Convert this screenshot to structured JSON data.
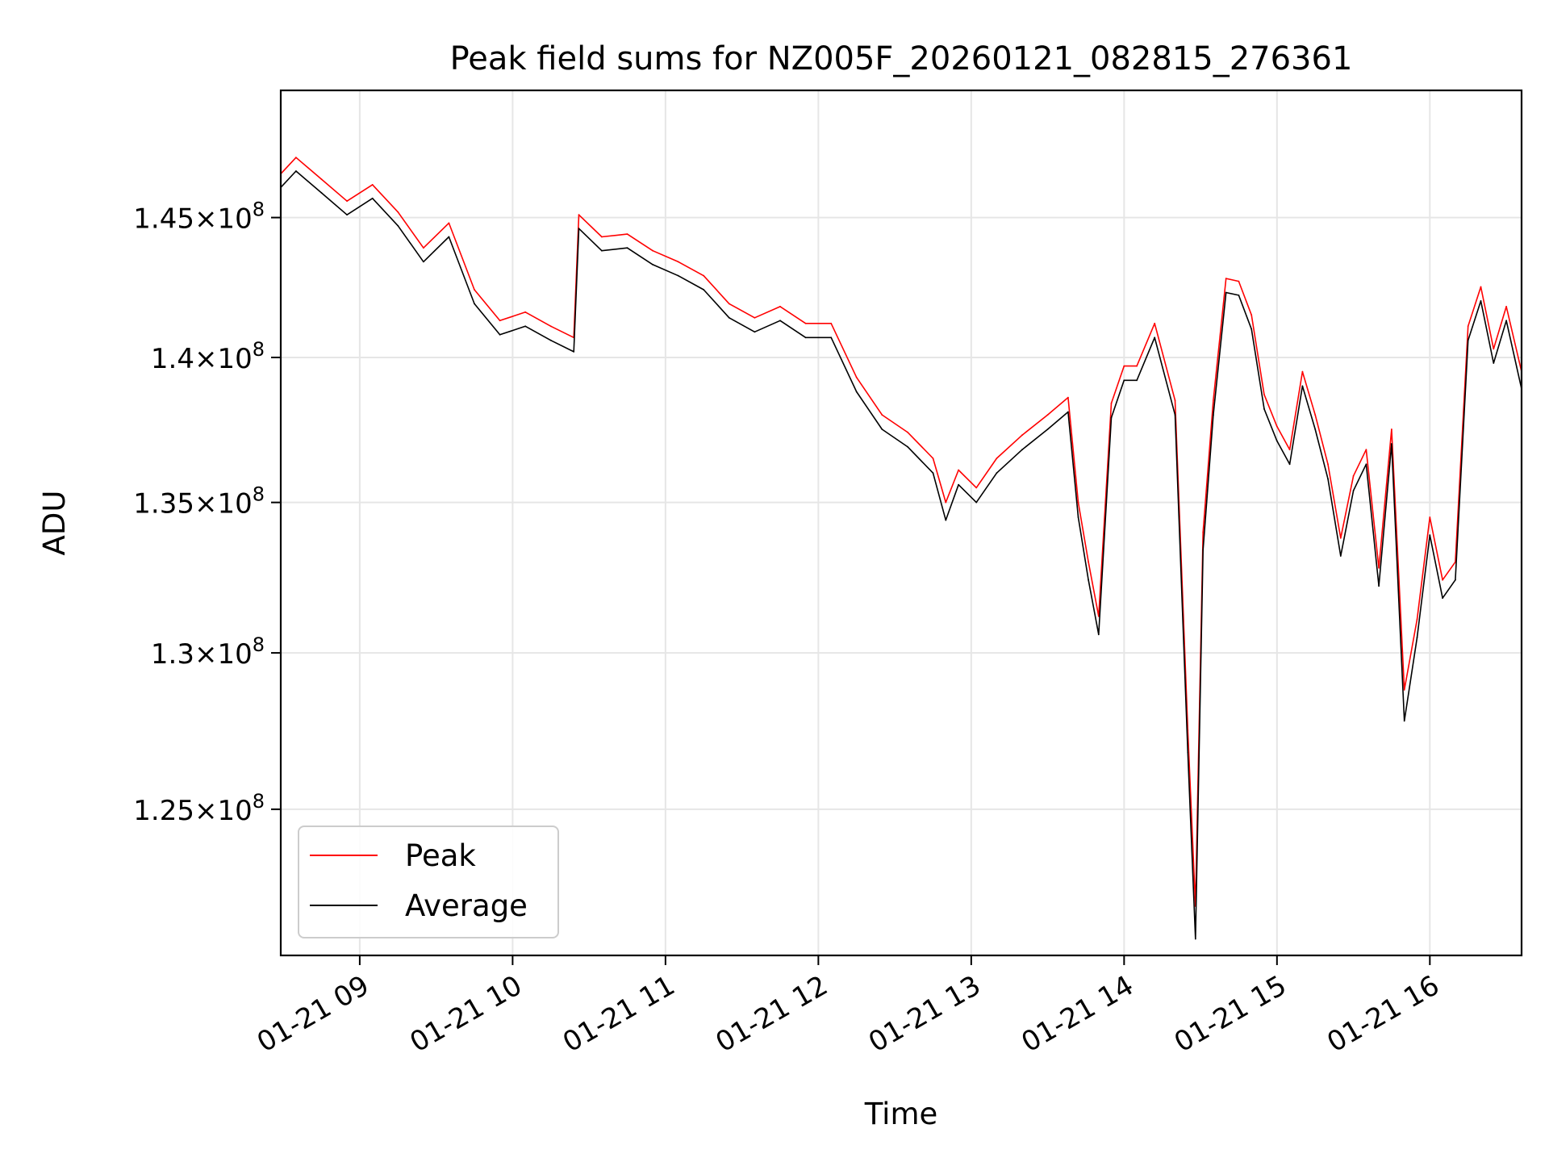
{
  "chart_data": {
    "type": "line",
    "title": "Peak field sums for NZ005F_20260121_082815_276361",
    "xlabel": "Time",
    "ylabel": "ADU",
    "y_scale": "log",
    "grid": true,
    "legend_position": "lower-left",
    "xlim": [
      "2026-01-21 08:29",
      "2026-01-21 16:36"
    ],
    "ylim": [
      120500000,
      149700000
    ],
    "x_ticks": [
      {
        "value": "2026-01-21 09:00",
        "label": "01-21 09"
      },
      {
        "value": "2026-01-21 10:00",
        "label": "01-21 10"
      },
      {
        "value": "2026-01-21 11:00",
        "label": "01-21 11"
      },
      {
        "value": "2026-01-21 12:00",
        "label": "01-21 12"
      },
      {
        "value": "2026-01-21 13:00",
        "label": "01-21 13"
      },
      {
        "value": "2026-01-21 14:00",
        "label": "01-21 14"
      },
      {
        "value": "2026-01-21 15:00",
        "label": "01-21 15"
      },
      {
        "value": "2026-01-21 16:00",
        "label": "01-21 16"
      }
    ],
    "y_ticks": [
      {
        "value": 125000000,
        "mantissa": "1.25",
        "base": "10",
        "exp": "8"
      },
      {
        "value": 130000000,
        "mantissa": "1.3",
        "base": "10",
        "exp": "8"
      },
      {
        "value": 135000000,
        "mantissa": "1.35",
        "base": "10",
        "exp": "8"
      },
      {
        "value": 140000000,
        "mantissa": "1.4",
        "base": "10",
        "exp": "8"
      },
      {
        "value": 145000000,
        "mantissa": "1.45",
        "base": "10",
        "exp": "8"
      }
    ],
    "series": [
      {
        "name": "Peak",
        "color": "#ff0000",
        "x": [
          "2026-01-21 08:29",
          "2026-01-21 08:35",
          "2026-01-21 08:45",
          "2026-01-21 08:55",
          "2026-01-21 09:05",
          "2026-01-21 09:15",
          "2026-01-21 09:25",
          "2026-01-21 09:35",
          "2026-01-21 09:45",
          "2026-01-21 09:55",
          "2026-01-21 10:05",
          "2026-01-21 10:15",
          "2026-01-21 10:24",
          "2026-01-21 10:26",
          "2026-01-21 10:35",
          "2026-01-21 10:45",
          "2026-01-21 10:55",
          "2026-01-21 11:05",
          "2026-01-21 11:15",
          "2026-01-21 11:25",
          "2026-01-21 11:35",
          "2026-01-21 11:45",
          "2026-01-21 11:55",
          "2026-01-21 12:05",
          "2026-01-21 12:15",
          "2026-01-21 12:25",
          "2026-01-21 12:35",
          "2026-01-21 12:45",
          "2026-01-21 12:50",
          "2026-01-21 12:55",
          "2026-01-21 13:02",
          "2026-01-21 13:10",
          "2026-01-21 13:20",
          "2026-01-21 13:30",
          "2026-01-21 13:38",
          "2026-01-21 13:42",
          "2026-01-21 13:46",
          "2026-01-21 13:50",
          "2026-01-21 13:55",
          "2026-01-21 14:00",
          "2026-01-21 14:05",
          "2026-01-21 14:12",
          "2026-01-21 14:20",
          "2026-01-21 14:25",
          "2026-01-21 14:28",
          "2026-01-21 14:31",
          "2026-01-21 14:35",
          "2026-01-21 14:40",
          "2026-01-21 14:45",
          "2026-01-21 14:50",
          "2026-01-21 14:55",
          "2026-01-21 15:00",
          "2026-01-21 15:05",
          "2026-01-21 15:10",
          "2026-01-21 15:15",
          "2026-01-21 15:20",
          "2026-01-21 15:25",
          "2026-01-21 15:30",
          "2026-01-21 15:35",
          "2026-01-21 15:40",
          "2026-01-21 15:45",
          "2026-01-21 15:50",
          "2026-01-21 15:55",
          "2026-01-21 16:00",
          "2026-01-21 16:05",
          "2026-01-21 16:10",
          "2026-01-21 16:15",
          "2026-01-21 16:20",
          "2026-01-21 16:25",
          "2026-01-21 16:30",
          "2026-01-21 16:36"
        ],
        "y": [
          146600000,
          147200000,
          146400000,
          145600000,
          146200000,
          145200000,
          143900000,
          144800000,
          142400000,
          141300000,
          141600000,
          141100000,
          140700000,
          145100000,
          144300000,
          144400000,
          143800000,
          143400000,
          142900000,
          141900000,
          141400000,
          141800000,
          141200000,
          141200000,
          139300000,
          138000000,
          137400000,
          136500000,
          135000000,
          136100000,
          135500000,
          136500000,
          137300000,
          138000000,
          138600000,
          135000000,
          133000000,
          131200000,
          138400000,
          139700000,
          139700000,
          141200000,
          138500000,
          127500000,
          122000000,
          134000000,
          138500000,
          142800000,
          142700000,
          141500000,
          138700000,
          137600000,
          136800000,
          139500000,
          138000000,
          136300000,
          133800000,
          135900000,
          136800000,
          132800000,
          137500000,
          128800000,
          131100000,
          134500000,
          132400000,
          133000000,
          141100000,
          142500000,
          140300000,
          141800000,
          139500000
        ]
      },
      {
        "name": "Average",
        "color": "#000000",
        "x": [
          "2026-01-21 08:29",
          "2026-01-21 08:35",
          "2026-01-21 08:45",
          "2026-01-21 08:55",
          "2026-01-21 09:05",
          "2026-01-21 09:15",
          "2026-01-21 09:25",
          "2026-01-21 09:35",
          "2026-01-21 09:45",
          "2026-01-21 09:55",
          "2026-01-21 10:05",
          "2026-01-21 10:15",
          "2026-01-21 10:24",
          "2026-01-21 10:26",
          "2026-01-21 10:35",
          "2026-01-21 10:45",
          "2026-01-21 10:55",
          "2026-01-21 11:05",
          "2026-01-21 11:15",
          "2026-01-21 11:25",
          "2026-01-21 11:35",
          "2026-01-21 11:45",
          "2026-01-21 11:55",
          "2026-01-21 12:05",
          "2026-01-21 12:15",
          "2026-01-21 12:25",
          "2026-01-21 12:35",
          "2026-01-21 12:45",
          "2026-01-21 12:50",
          "2026-01-21 12:55",
          "2026-01-21 13:02",
          "2026-01-21 13:10",
          "2026-01-21 13:20",
          "2026-01-21 13:30",
          "2026-01-21 13:38",
          "2026-01-21 13:42",
          "2026-01-21 13:46",
          "2026-01-21 13:50",
          "2026-01-21 13:55",
          "2026-01-21 14:00",
          "2026-01-21 14:05",
          "2026-01-21 14:12",
          "2026-01-21 14:20",
          "2026-01-21 14:25",
          "2026-01-21 14:28",
          "2026-01-21 14:31",
          "2026-01-21 14:35",
          "2026-01-21 14:40",
          "2026-01-21 14:45",
          "2026-01-21 14:50",
          "2026-01-21 14:55",
          "2026-01-21 15:00",
          "2026-01-21 15:05",
          "2026-01-21 15:10",
          "2026-01-21 15:15",
          "2026-01-21 15:20",
          "2026-01-21 15:25",
          "2026-01-21 15:30",
          "2026-01-21 15:35",
          "2026-01-21 15:40",
          "2026-01-21 15:45",
          "2026-01-21 15:50",
          "2026-01-21 15:55",
          "2026-01-21 16:00",
          "2026-01-21 16:05",
          "2026-01-21 16:10",
          "2026-01-21 16:15",
          "2026-01-21 16:20",
          "2026-01-21 16:25",
          "2026-01-21 16:30",
          "2026-01-21 16:36"
        ],
        "y": [
          146100000,
          146700000,
          145900000,
          145100000,
          145700000,
          144700000,
          143400000,
          144300000,
          141900000,
          140800000,
          141100000,
          140600000,
          140200000,
          144600000,
          143800000,
          143900000,
          143300000,
          142900000,
          142400000,
          141400000,
          140900000,
          141300000,
          140700000,
          140700000,
          138800000,
          137500000,
          136900000,
          136000000,
          134400000,
          135600000,
          135000000,
          136000000,
          136800000,
          137500000,
          138100000,
          134500000,
          132400000,
          130600000,
          137900000,
          139200000,
          139200000,
          140700000,
          138000000,
          126800000,
          121000000,
          133400000,
          138000000,
          142300000,
          142200000,
          141000000,
          138200000,
          137100000,
          136300000,
          139000000,
          137500000,
          135800000,
          133200000,
          135400000,
          136300000,
          132200000,
          137000000,
          127800000,
          130500000,
          133900000,
          131800000,
          132400000,
          140600000,
          142000000,
          139800000,
          141300000,
          138900000
        ]
      }
    ]
  }
}
